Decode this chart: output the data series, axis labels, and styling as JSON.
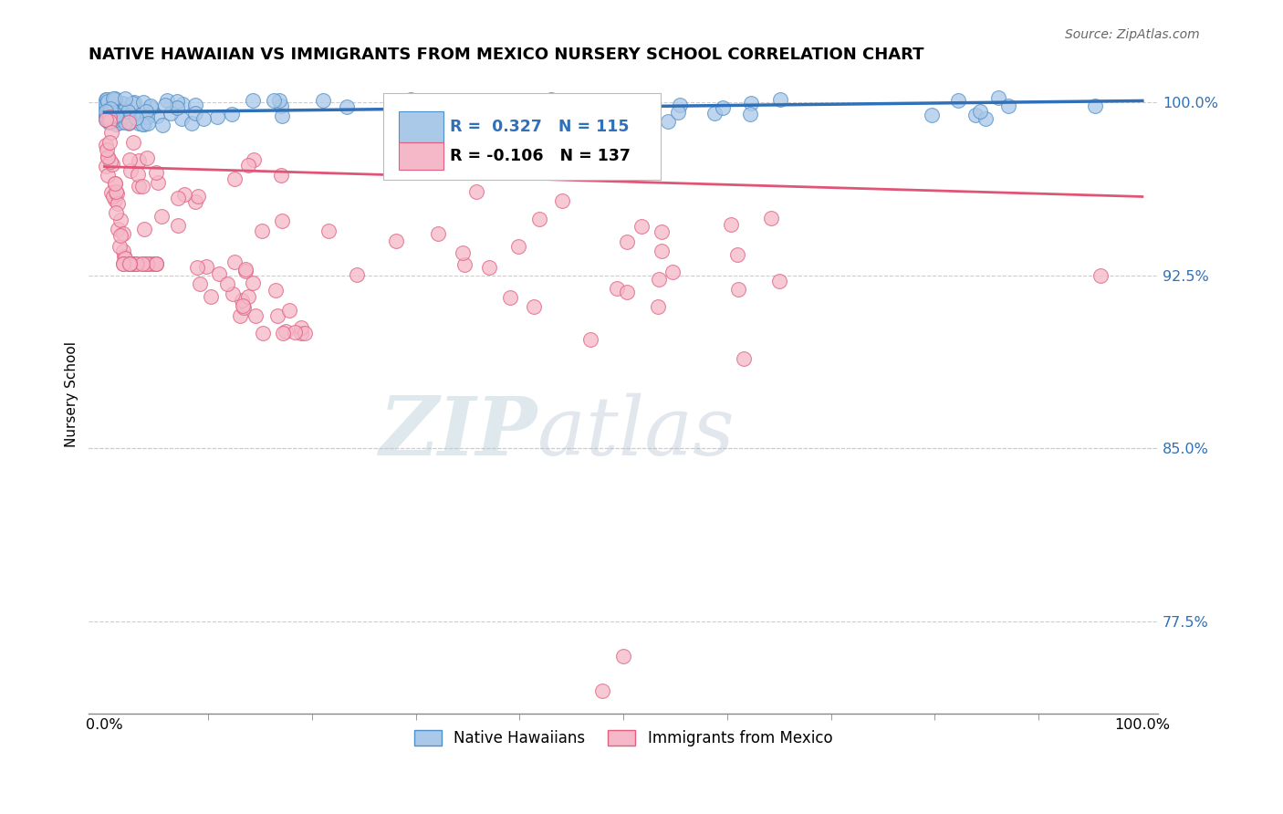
{
  "title": "NATIVE HAWAIIAN VS IMMIGRANTS FROM MEXICO NURSERY SCHOOL CORRELATION CHART",
  "source": "Source: ZipAtlas.com",
  "ylabel": "Nursery School",
  "ylim": [
    0.735,
    1.012
  ],
  "xlim": [
    -0.015,
    1.015
  ],
  "blue_R": 0.327,
  "blue_N": 115,
  "pink_R": -0.106,
  "pink_N": 137,
  "blue_color": "#aac8e8",
  "blue_edge_color": "#5090c8",
  "blue_line_color": "#3070b8",
  "pink_color": "#f5b8c8",
  "pink_edge_color": "#e06080",
  "pink_line_color": "#e05575",
  "legend_blue_label": "Native Hawaiians",
  "legend_pink_label": "Immigrants from Mexico",
  "watermark_zip": "ZIP",
  "watermark_atlas": "atlas",
  "background_color": "#ffffff",
  "grid_color": "#cccccc",
  "ytick_positions": [
    0.775,
    0.85,
    0.925,
    1.0
  ],
  "ytick_labels": [
    "77.5%",
    "85.0%",
    "92.5%",
    "100.0%"
  ],
  "blue_trend_y0": 0.9955,
  "blue_trend_y1": 1.0005,
  "pink_trend_y0": 0.972,
  "pink_trend_y1": 0.959
}
